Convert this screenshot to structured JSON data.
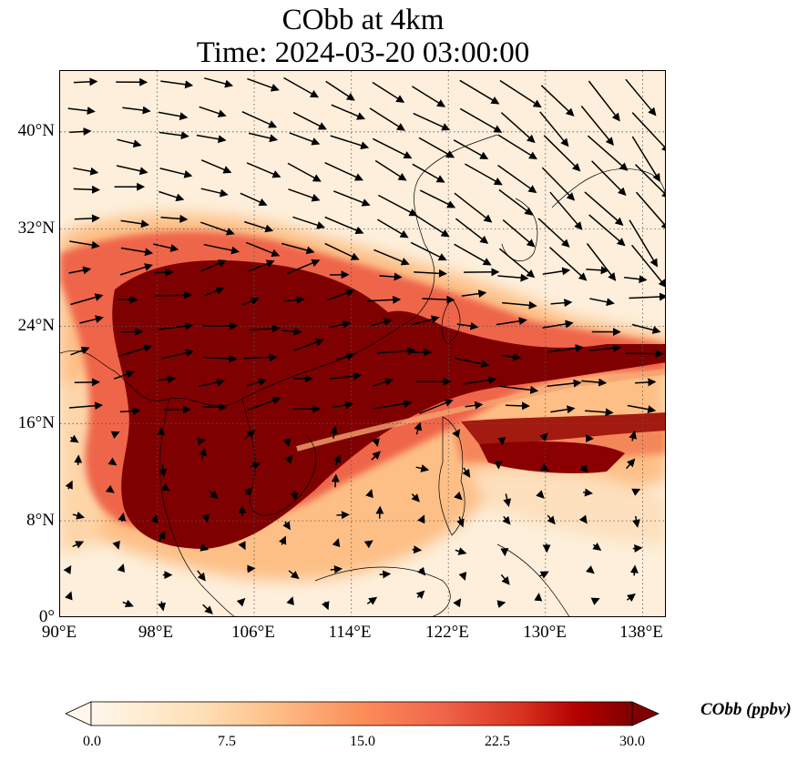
{
  "title": {
    "line1": "CObb at 4km",
    "line2": "Time: 2024-03-20 03:00:00"
  },
  "map": {
    "lat_range": [
      0,
      45
    ],
    "lon_range": [
      90,
      140
    ],
    "lat_ticks": [
      "40°N",
      "32°N",
      "24°N",
      "16°N",
      "8°N",
      "0°"
    ],
    "lon_ticks": [
      "90°E",
      "98°E",
      "106°E",
      "114°E",
      "122°E",
      "130°E",
      "138°E"
    ],
    "gridlines": true,
    "colormap": "OrRd",
    "colors": {
      "low": "#fff5eb",
      "mid": "#fc8d59",
      "high": "#7f0000"
    }
  },
  "colorbar": {
    "label": "CObb (ppbv)",
    "ticks": [
      "0.0",
      "7.5",
      "15.0",
      "22.5",
      "30.0"
    ],
    "range": [
      0,
      30
    ],
    "extend": "both"
  }
}
